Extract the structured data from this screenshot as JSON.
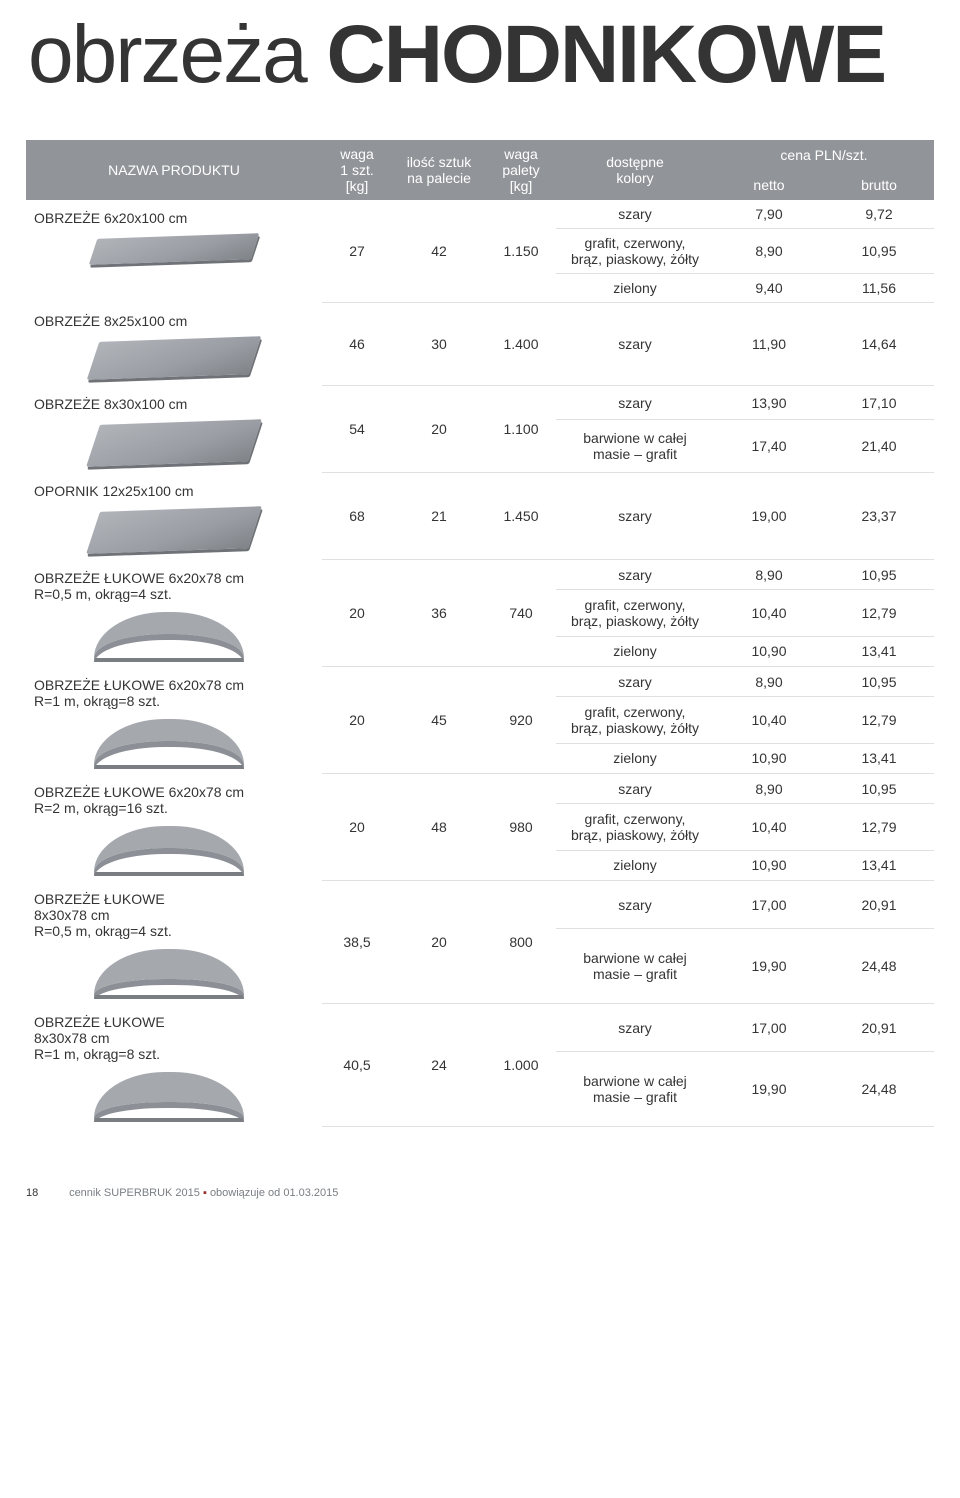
{
  "title": {
    "light": "obrzeża",
    "bold": "CHODNIKOWE"
  },
  "headers": {
    "name": "NAZWA PRODUKTU",
    "waga1": "waga\n1 szt.\n[kg]",
    "ilosc": "ilość sztuk\nna palecie",
    "wagap": "waga\npalety\n[kg]",
    "kolory": "dostępne\nkolory",
    "cena": "cena PLN/szt.",
    "netto": "netto",
    "brutto": "brutto"
  },
  "footer": {
    "page": "18",
    "text": "cennik SUPERBRUK 2015",
    "tail": "obowiązuje od 01.03.2015"
  },
  "products": [
    {
      "name": "OBRZEŻE 6x20x100 cm",
      "shape": "slab",
      "waga1": "27",
      "ilosc": "42",
      "wagap": "1.150",
      "rows": [
        {
          "color": "szary",
          "netto": "7,90",
          "brutto": "9,72"
        },
        {
          "color": "grafit, czerwony,\nbrąz, piaskowy, żółty",
          "netto": "8,90",
          "brutto": "10,95"
        },
        {
          "color": "zielony",
          "netto": "9,40",
          "brutto": "11,56"
        }
      ]
    },
    {
      "name": "OBRZEŻE 8x25x100 cm",
      "shape": "slab tall",
      "waga1": "46",
      "ilosc": "30",
      "wagap": "1.400",
      "rows": [
        {
          "color": "szary",
          "netto": "11,90",
          "brutto": "14,64"
        }
      ]
    },
    {
      "name": "OBRZEŻE 8x30x100 cm",
      "shape": "slab taller",
      "waga1": "54",
      "ilosc": "20",
      "wagap": "1.100",
      "rows": [
        {
          "color": "szary",
          "netto": "13,90",
          "brutto": "17,10"
        },
        {
          "color": "barwione w całej\nmasie – grafit",
          "netto": "17,40",
          "brutto": "21,40"
        }
      ]
    },
    {
      "name": "OPORNIK 12x25x100 cm",
      "shape": "slab taller",
      "waga1": "68",
      "ilosc": "21",
      "wagap": "1.450",
      "rows": [
        {
          "color": "szary",
          "netto": "19,00",
          "brutto": "23,37"
        }
      ]
    },
    {
      "name": "OBRZEŻE ŁUKOWE 6x20x78 cm\nR=0,5 m, okrąg=4 szt.",
      "shape": "curve",
      "waga1": "20",
      "ilosc": "36",
      "wagap": "740",
      "rows": [
        {
          "color": "szary",
          "netto": "8,90",
          "brutto": "10,95"
        },
        {
          "color": "grafit, czerwony,\nbrąz, piaskowy, żółty",
          "netto": "10,40",
          "brutto": "12,79"
        },
        {
          "color": "zielony",
          "netto": "10,90",
          "brutto": "13,41"
        }
      ]
    },
    {
      "name": "OBRZEŻE ŁUKOWE 6x20x78 cm\nR=1 m, okrąg=8 szt.",
      "shape": "curve",
      "waga1": "20",
      "ilosc": "45",
      "wagap": "920",
      "rows": [
        {
          "color": "szary",
          "netto": "8,90",
          "brutto": "10,95"
        },
        {
          "color": "grafit, czerwony,\nbrąz, piaskowy, żółty",
          "netto": "10,40",
          "brutto": "12,79"
        },
        {
          "color": "zielony",
          "netto": "10,90",
          "brutto": "13,41"
        }
      ]
    },
    {
      "name": "OBRZEŻE ŁUKOWE 6x20x78 cm\nR=2 m, okrąg=16 szt.",
      "shape": "curve",
      "waga1": "20",
      "ilosc": "48",
      "wagap": "980",
      "rows": [
        {
          "color": "szary",
          "netto": "8,90",
          "brutto": "10,95"
        },
        {
          "color": "grafit, czerwony,\nbrąz, piaskowy, żółty",
          "netto": "10,40",
          "brutto": "12,79"
        },
        {
          "color": "zielony",
          "netto": "10,90",
          "brutto": "13,41"
        }
      ]
    },
    {
      "name": "OBRZEŻE ŁUKOWE\n8x30x78 cm\nR=0,5 m, okrąg=4 szt.",
      "shape": "curve tall",
      "waga1": "38,5",
      "ilosc": "20",
      "wagap": "800",
      "rows": [
        {
          "color": "szary",
          "netto": "17,00",
          "brutto": "20,91"
        },
        {
          "color": "barwione w całej\nmasie – grafit",
          "netto": "19,90",
          "brutto": "24,48"
        }
      ]
    },
    {
      "name": "OBRZEŻE ŁUKOWE\n8x30x78 cm\nR=1 m, okrąg=8 szt.",
      "shape": "curve tall",
      "waga1": "40,5",
      "ilosc": "24",
      "wagap": "1.000",
      "rows": [
        {
          "color": "szary",
          "netto": "17,00",
          "brutto": "20,91"
        },
        {
          "color": "barwione w całej\nmasie – grafit",
          "netto": "19,90",
          "brutto": "24,48"
        }
      ]
    }
  ]
}
